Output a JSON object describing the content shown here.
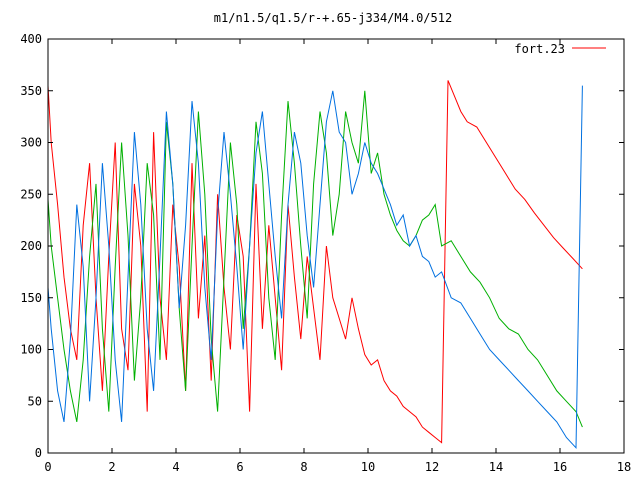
{
  "chart_data": {
    "type": "line",
    "title": "m1/n1.5/q1.5/r-+.65-j334/M4.0/512",
    "xlabel": "",
    "ylabel": "",
    "xlim": [
      0,
      18
    ],
    "ylim": [
      0,
      400
    ],
    "xticks": [
      0,
      2,
      4,
      6,
      8,
      10,
      12,
      14,
      16,
      18
    ],
    "yticks": [
      0,
      50,
      100,
      150,
      200,
      250,
      300,
      350,
      400
    ],
    "grid": false,
    "legend_position": "top-right",
    "series": [
      {
        "name": "fort.23",
        "color": "#ff0000",
        "x": [
          0,
          0.1,
          0.3,
          0.5,
          0.7,
          0.9,
          1.1,
          1.3,
          1.5,
          1.7,
          1.9,
          2.1,
          2.3,
          2.5,
          2.7,
          2.9,
          3.1,
          3.3,
          3.5,
          3.7,
          3.9,
          4.1,
          4.3,
          4.5,
          4.7,
          4.9,
          5.1,
          5.3,
          5.5,
          5.7,
          5.9,
          6.1,
          6.3,
          6.5,
          6.7,
          6.9,
          7.1,
          7.3,
          7.5,
          7.7,
          7.9,
          8.1,
          8.3,
          8.5,
          8.7,
          8.9,
          9.1,
          9.3,
          9.5,
          9.7,
          9.9,
          10.1,
          10.3,
          10.5,
          10.7,
          10.9,
          11.1,
          11.3,
          11.5,
          11.7,
          11.9,
          12.1,
          12.3,
          12.5,
          12.7,
          12.9,
          13.1,
          13.4,
          13.7,
          14.0,
          14.3,
          14.6,
          14.9,
          15.2,
          15.5,
          15.8,
          16.1,
          16.4,
          16.7
        ],
        "y": [
          355,
          300,
          240,
          170,
          120,
          90,
          220,
          280,
          150,
          60,
          190,
          300,
          120,
          80,
          260,
          200,
          40,
          310,
          150,
          90,
          240,
          180,
          60,
          280,
          130,
          210,
          70,
          250,
          160,
          100,
          230,
          190,
          40,
          260,
          120,
          220,
          150,
          80,
          240,
          170,
          110,
          190,
          140,
          90,
          200,
          150,
          130,
          110,
          150,
          120,
          95,
          85,
          90,
          70,
          60,
          55,
          45,
          40,
          35,
          25,
          20,
          15,
          10,
          360,
          345,
          330,
          320,
          315,
          300,
          285,
          270,
          255,
          245,
          232,
          220,
          208,
          198,
          188,
          178
        ]
      },
      {
        "name": "",
        "color": "#00b000",
        "x": [
          0,
          0.1,
          0.3,
          0.5,
          0.7,
          0.9,
          1.1,
          1.3,
          1.5,
          1.7,
          1.9,
          2.1,
          2.3,
          2.5,
          2.7,
          2.9,
          3.1,
          3.3,
          3.5,
          3.7,
          3.9,
          4.1,
          4.3,
          4.5,
          4.7,
          4.9,
          5.1,
          5.3,
          5.5,
          5.7,
          5.9,
          6.1,
          6.3,
          6.5,
          6.7,
          6.9,
          7.1,
          7.3,
          7.5,
          7.7,
          7.9,
          8.1,
          8.3,
          8.5,
          8.7,
          8.9,
          9.1,
          9.3,
          9.5,
          9.7,
          9.9,
          10.1,
          10.3,
          10.5,
          10.7,
          10.9,
          11.1,
          11.3,
          11.5,
          11.7,
          11.9,
          12.1,
          12.3,
          12.6,
          12.9,
          13.2,
          13.5,
          13.8,
          14.1,
          14.4,
          14.7,
          15.0,
          15.3,
          15.6,
          15.9,
          16.2,
          16.5,
          16.7
        ],
        "y": [
          245,
          200,
          150,
          100,
          60,
          30,
          90,
          190,
          260,
          120,
          40,
          180,
          300,
          210,
          70,
          150,
          280,
          230,
          90,
          320,
          260,
          140,
          60,
          200,
          330,
          250,
          110,
          40,
          170,
          300,
          240,
          120,
          200,
          320,
          270,
          150,
          90,
          230,
          340,
          280,
          200,
          130,
          260,
          330,
          290,
          210,
          250,
          330,
          300,
          280,
          350,
          270,
          290,
          250,
          230,
          215,
          205,
          200,
          210,
          225,
          230,
          240,
          200,
          205,
          190,
          175,
          165,
          150,
          130,
          120,
          115,
          100,
          90,
          75,
          60,
          50,
          40,
          25
        ]
      },
      {
        "name": "",
        "color": "#0070e0",
        "x": [
          0,
          0.1,
          0.3,
          0.5,
          0.7,
          0.9,
          1.1,
          1.3,
          1.5,
          1.7,
          1.9,
          2.1,
          2.3,
          2.5,
          2.7,
          2.9,
          3.1,
          3.3,
          3.5,
          3.7,
          3.9,
          4.1,
          4.3,
          4.5,
          4.7,
          4.9,
          5.1,
          5.3,
          5.5,
          5.7,
          5.9,
          6.1,
          6.3,
          6.5,
          6.7,
          6.9,
          7.1,
          7.3,
          7.5,
          7.7,
          7.9,
          8.1,
          8.3,
          8.5,
          8.7,
          8.9,
          9.1,
          9.3,
          9.5,
          9.7,
          9.9,
          10.1,
          10.3,
          10.5,
          10.7,
          10.9,
          11.1,
          11.3,
          11.5,
          11.7,
          11.9,
          12.1,
          12.3,
          12.6,
          12.9,
          13.2,
          13.5,
          13.8,
          14.1,
          14.4,
          14.7,
          15.0,
          15.3,
          15.6,
          15.9,
          16.2,
          16.5,
          16.7
        ],
        "y": [
          160,
          120,
          60,
          30,
          110,
          240,
          180,
          50,
          150,
          280,
          200,
          90,
          30,
          170,
          310,
          240,
          120,
          60,
          190,
          330,
          260,
          140,
          220,
          340,
          280,
          160,
          90,
          230,
          310,
          250,
          180,
          100,
          200,
          290,
          330,
          260,
          190,
          130,
          240,
          310,
          280,
          210,
          160,
          240,
          320,
          350,
          310,
          300,
          250,
          270,
          300,
          280,
          270,
          255,
          240,
          220,
          230,
          200,
          210,
          190,
          185,
          170,
          175,
          150,
          145,
          130,
          115,
          100,
          90,
          80,
          70,
          60,
          50,
          40,
          30,
          15,
          5,
          355
        ]
      }
    ]
  }
}
